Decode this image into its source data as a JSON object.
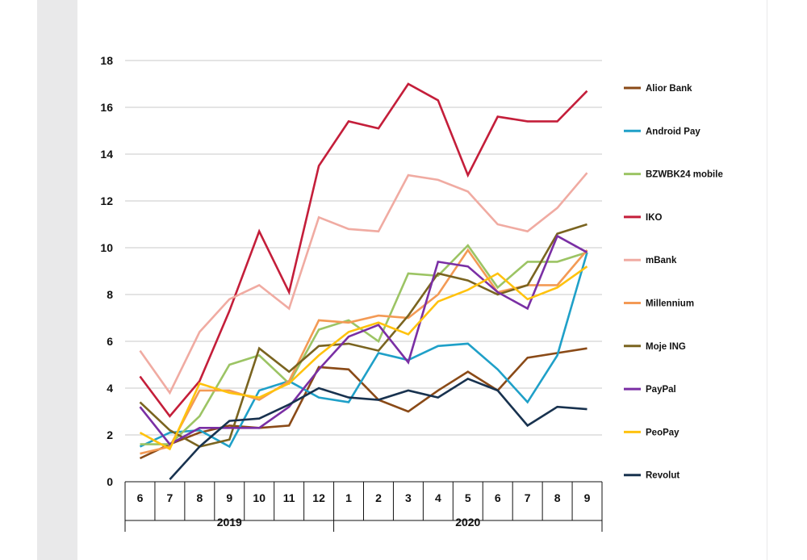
{
  "chart_data": {
    "type": "line",
    "title": "",
    "xlabel": "",
    "ylabel": "",
    "ylim": [
      0,
      18
    ],
    "yticks": [
      0,
      2,
      4,
      6,
      8,
      10,
      12,
      14,
      16,
      18
    ],
    "grid": true,
    "legend_position": "right",
    "categories": [
      "6",
      "7",
      "8",
      "9",
      "10",
      "11",
      "12",
      "1",
      "2",
      "3",
      "4",
      "5",
      "6",
      "7",
      "8",
      "9"
    ],
    "year_groups": [
      {
        "label": "2019",
        "from": 0,
        "to": 6
      },
      {
        "label": "2020",
        "from": 7,
        "to": 15
      }
    ],
    "series": [
      {
        "name": "Alior Bank",
        "color": "#8a4a17",
        "values": [
          1.0,
          1.6,
          2.1,
          2.4,
          2.3,
          2.4,
          4.9,
          4.8,
          3.5,
          3.0,
          3.9,
          4.7,
          3.9,
          5.3,
          5.5,
          5.7
        ]
      },
      {
        "name": "Android Pay",
        "color": "#1fa0c8",
        "values": [
          1.5,
          2.1,
          2.2,
          1.5,
          3.9,
          4.3,
          3.6,
          3.4,
          5.5,
          5.2,
          5.8,
          5.9,
          4.8,
          3.4,
          5.4,
          9.8
        ]
      },
      {
        "name": "BZWBK24 mobile",
        "color": "#9cc464",
        "values": [
          1.6,
          1.6,
          2.8,
          5.0,
          5.4,
          4.2,
          6.5,
          6.9,
          6.0,
          8.9,
          8.8,
          10.1,
          8.3,
          9.4,
          9.4,
          9.8
        ]
      },
      {
        "name": "IKO",
        "color": "#c41e3a",
        "values": [
          4.5,
          2.8,
          4.3,
          7.3,
          10.7,
          8.1,
          13.5,
          15.4,
          15.1,
          17.0,
          16.3,
          13.1,
          15.6,
          15.4,
          15.4,
          16.7
        ]
      },
      {
        "name": "mBank",
        "color": "#f0aba2",
        "values": [
          5.6,
          3.8,
          6.4,
          7.8,
          8.4,
          7.4,
          11.3,
          10.8,
          10.7,
          13.1,
          12.9,
          12.4,
          11.0,
          10.7,
          11.7,
          13.2
        ]
      },
      {
        "name": "Millennium",
        "color": "#f39a55",
        "values": [
          1.2,
          1.5,
          3.9,
          3.9,
          3.5,
          4.3,
          6.9,
          6.8,
          7.1,
          7.0,
          8.0,
          9.9,
          8.1,
          8.4,
          8.4,
          9.9
        ]
      },
      {
        "name": "Moje ING",
        "color": "#7a6420",
        "values": [
          3.4,
          2.2,
          1.5,
          1.8,
          5.7,
          4.7,
          5.8,
          5.9,
          5.6,
          7.1,
          8.9,
          8.6,
          8.0,
          8.4,
          10.6,
          11.0
        ]
      },
      {
        "name": "PayPal",
        "color": "#7a2fa4",
        "values": [
          3.2,
          1.6,
          2.3,
          2.3,
          2.3,
          3.2,
          4.8,
          6.2,
          6.7,
          5.1,
          9.4,
          9.2,
          8.1,
          7.4,
          10.5,
          9.8
        ]
      },
      {
        "name": "PeoPay",
        "color": "#ffc20e",
        "values": [
          2.1,
          1.4,
          4.2,
          3.8,
          3.6,
          4.2,
          5.4,
          6.4,
          6.8,
          6.3,
          7.7,
          8.2,
          8.9,
          7.8,
          8.3,
          9.2
        ]
      },
      {
        "name": "Revolut",
        "color": "#18324f",
        "values": [
          null,
          0.1,
          1.5,
          2.6,
          2.7,
          3.3,
          4.0,
          3.6,
          3.5,
          3.9,
          3.6,
          4.4,
          3.9,
          2.4,
          3.2,
          3.1
        ]
      }
    ]
  }
}
